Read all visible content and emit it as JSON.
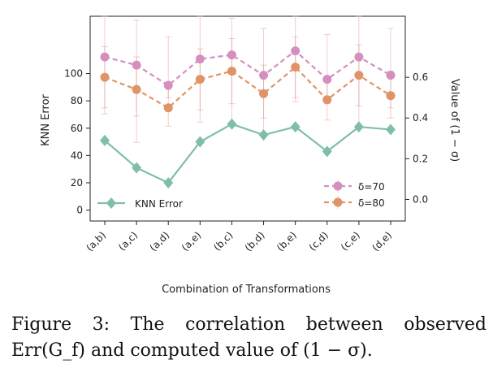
{
  "chart_data": {
    "type": "line",
    "categories": [
      "(a,b)",
      "(a,c)",
      "(a,d)",
      "(a,e)",
      "(b,c)",
      "(b,d)",
      "(b,e)",
      "(c,d)",
      "(c,e)",
      "(d,e)"
    ],
    "xlabel": "Combination of Transformations",
    "ylabel_left": "KNN Error",
    "ylabel_right": "Value of  (1 − σ)",
    "ylim_left": [
      -8,
      142
    ],
    "ylim_right": [
      -0.106,
      0.9
    ],
    "yticks_left": [
      0,
      20,
      40,
      60,
      80,
      100
    ],
    "yticks_right": [
      0.0,
      0.2,
      0.4,
      0.6
    ],
    "ytick_labels_right": [
      "0.0",
      "0.2",
      "0.4",
      "0.6"
    ],
    "grid": false,
    "series": [
      {
        "name": "KNN Error",
        "axis": "left",
        "color": "#7fbfa6",
        "marker": "diamond",
        "linestyle": "solid",
        "values": [
          51,
          31,
          20,
          50,
          63,
          55,
          61,
          43,
          61,
          59
        ]
      },
      {
        "name": "δ=70",
        "axis": "right",
        "color": "#d48fbf",
        "marker": "circle",
        "linestyle": "dashed",
        "values": [
          0.7,
          0.66,
          0.56,
          0.69,
          0.71,
          0.61,
          0.73,
          0.59,
          0.7,
          0.61
        ],
        "err_low": [
          0.42,
          0.28,
          0.5,
          0.38,
          0.36,
          0.33,
          0.48,
          0.47,
          0.36,
          0.45
        ],
        "err_high": [
          0.9,
          0.88,
          0.8,
          0.9,
          0.89,
          0.84,
          0.9,
          0.81,
          0.9,
          0.84
        ]
      },
      {
        "name": "δ=80",
        "axis": "right",
        "color": "#e09367",
        "marker": "circle",
        "linestyle": "dashed",
        "values": [
          0.6,
          0.54,
          0.45,
          0.59,
          0.63,
          0.52,
          0.65,
          0.49,
          0.61,
          0.51
        ],
        "err_low": [
          0.45,
          0.41,
          0.36,
          0.44,
          0.47,
          0.4,
          0.5,
          0.39,
          0.46,
          0.4
        ],
        "err_high": [
          0.75,
          0.7,
          0.55,
          0.74,
          0.79,
          0.66,
          0.8,
          0.6,
          0.76,
          0.63
        ]
      }
    ],
    "legend_left": {
      "placement": "lower-left",
      "entries": [
        "KNN Error"
      ]
    },
    "legend_right": {
      "placement": "lower-right",
      "entries": [
        "δ=70",
        "δ=80"
      ]
    }
  },
  "caption": {
    "line1": "Figure 3:  The correlation between observed",
    "line2": "Err(G_f) and computed value of (1 − σ)."
  }
}
